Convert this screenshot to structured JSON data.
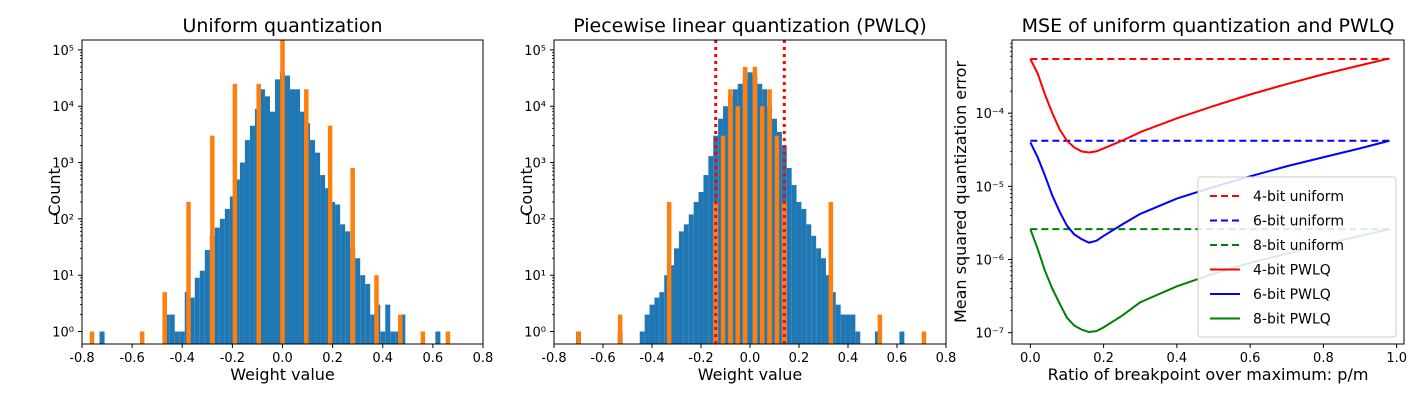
{
  "chart_data": [
    {
      "type": "bar",
      "title": "Uniform quantization",
      "xlabel": "Weight value",
      "ylabel": "Count",
      "yscale": "log",
      "xlim": [
        -0.8,
        0.8
      ],
      "ylim": [
        0.6,
        150000
      ],
      "xticks": [
        "-0.8",
        "-0.6",
        "-0.4",
        "-0.2",
        "0.0",
        "0.2",
        "0.4",
        "0.6",
        "0.8"
      ],
      "yticks": [
        1,
        10,
        100,
        1000,
        10000,
        100000
      ],
      "series": [
        {
          "color": "#1f77b4",
          "x": [
            -0.72,
            -0.46,
            -0.44,
            -0.42,
            -0.4,
            -0.38,
            -0.36,
            -0.34,
            -0.32,
            -0.3,
            -0.28,
            -0.26,
            -0.24,
            -0.22,
            -0.2,
            -0.18,
            -0.16,
            -0.14,
            -0.12,
            -0.1,
            -0.08,
            -0.06,
            -0.04,
            -0.02,
            0.0,
            0.02,
            0.04,
            0.06,
            0.08,
            0.1,
            0.12,
            0.14,
            0.16,
            0.18,
            0.2,
            0.22,
            0.24,
            0.26,
            0.28,
            0.3,
            0.32,
            0.34,
            0.36,
            0.38,
            0.4,
            0.42,
            0.44,
            0.46,
            0.48,
            0.62
          ],
          "values": [
            1,
            2,
            2,
            1,
            1,
            5,
            4,
            9,
            12,
            28,
            50,
            70,
            100,
            150,
            250,
            500,
            1000,
            2500,
            4500,
            9000,
            20000,
            15000,
            8000,
            30000,
            40000,
            35000,
            20000,
            20000,
            8000,
            5000,
            2500,
            1500,
            600,
            350,
            200,
            180,
            80,
            60,
            30,
            20,
            10,
            7,
            2,
            3,
            1,
            3,
            1,
            1,
            2,
            1
          ]
        },
        {
          "color": "#ff7f0e",
          "x": [
            -0.76,
            -0.56,
            -0.47,
            -0.375,
            -0.28,
            -0.19,
            -0.095,
            0.0,
            0.095,
            0.19,
            0.28,
            0.375,
            0.47,
            0.56,
            0.66
          ],
          "values": [
            1,
            1,
            5,
            200,
            3000,
            25000,
            25000,
            180000,
            20000,
            4500,
            800,
            10,
            2,
            1,
            1
          ]
        }
      ]
    },
    {
      "type": "bar",
      "title": "Piecewise linear quantization (PWLQ)",
      "xlabel": "Weight value",
      "ylabel": "Count",
      "yscale": "log",
      "xlim": [
        -0.8,
        0.8
      ],
      "ylim": [
        0.6,
        150000
      ],
      "xticks": [
        "-0.8",
        "-0.6",
        "-0.4",
        "-0.2",
        "0.0",
        "0.2",
        "0.4",
        "0.6",
        "0.8"
      ],
      "yticks": [
        1,
        10,
        100,
        1000,
        10000,
        100000
      ],
      "breakpoints": [
        -0.14,
        0.14
      ],
      "breakpoint_color": "#ff0000",
      "series": [
        {
          "color": "#1f77b4",
          "x": [
            -0.7,
            -0.53,
            -0.44,
            -0.42,
            -0.4,
            -0.38,
            -0.36,
            -0.34,
            -0.32,
            -0.3,
            -0.28,
            -0.26,
            -0.24,
            -0.22,
            -0.2,
            -0.18,
            -0.16,
            -0.14,
            -0.12,
            -0.1,
            -0.08,
            -0.06,
            -0.04,
            -0.02,
            0.0,
            0.02,
            0.04,
            0.06,
            0.08,
            0.1,
            0.12,
            0.14,
            0.16,
            0.18,
            0.2,
            0.22,
            0.24,
            0.26,
            0.28,
            0.3,
            0.32,
            0.34,
            0.36,
            0.38,
            0.4,
            0.42,
            0.44,
            0.52,
            0.62
          ],
          "values": [
            1,
            1,
            1,
            2,
            3,
            4,
            5,
            10,
            15,
            30,
            60,
            80,
            120,
            200,
            300,
            600,
            1300,
            3000,
            6000,
            10000,
            15000,
            20000,
            25000,
            30000,
            40000,
            35000,
            25000,
            20000,
            10000,
            6000,
            3500,
            2000,
            800,
            400,
            200,
            150,
            80,
            50,
            30,
            20,
            10,
            5,
            3,
            2,
            2,
            2,
            1,
            1,
            1
          ]
        },
        {
          "color": "#ff7f0e",
          "x": [
            -0.7,
            -0.53,
            -0.33,
            -0.14,
            -0.11,
            -0.08,
            -0.05,
            -0.02,
            0.02,
            0.05,
            0.08,
            0.11,
            0.14,
            0.33,
            0.53,
            0.71
          ],
          "values": [
            1,
            2,
            200,
            200,
            3000,
            20000,
            10000,
            50000,
            50000,
            10000,
            20000,
            3000,
            200,
            200,
            2,
            1
          ]
        }
      ]
    },
    {
      "type": "line",
      "title": "MSE of uniform quantization and PWLQ",
      "xlabel": "Ratio of breakpoint over maximum: p/m",
      "ylabel": "Mean squared quantization error",
      "yscale": "log",
      "xlim": [
        -0.05,
        1.02
      ],
      "ylim": [
        7e-08,
        0.001
      ],
      "xticks": [
        "0.0",
        "0.2",
        "0.4",
        "0.6",
        "0.8",
        "1.0"
      ],
      "yticks": [
        1e-07,
        1e-06,
        1e-05,
        0.0001
      ],
      "legend_position": "lower-right",
      "series": [
        {
          "name": "4-bit uniform",
          "color": "#ff0000",
          "style": "dashed",
          "x": [
            0.0,
            0.98
          ],
          "y": [
            0.00055,
            0.00055
          ]
        },
        {
          "name": "6-bit uniform",
          "color": "#0000ff",
          "style": "dashed",
          "x": [
            0.0,
            0.98
          ],
          "y": [
            4.2e-05,
            4.2e-05
          ]
        },
        {
          "name": "8-bit uniform",
          "color": "#008000",
          "style": "dashed",
          "x": [
            0.0,
            0.98
          ],
          "y": [
            2.6e-06,
            2.6e-06
          ]
        },
        {
          "name": "4-bit PWLQ",
          "color": "#ff0000",
          "style": "solid",
          "x": [
            0.0,
            0.02,
            0.04,
            0.06,
            0.08,
            0.1,
            0.12,
            0.14,
            0.16,
            0.18,
            0.2,
            0.25,
            0.3,
            0.4,
            0.5,
            0.6,
            0.7,
            0.8,
            0.9,
            0.98
          ],
          "y": [
            0.00055,
            0.00035,
            0.00018,
            0.0001,
            6e-05,
            4.2e-05,
            3.4e-05,
            3e-05,
            2.9e-05,
            3e-05,
            3.3e-05,
            4.2e-05,
            5.5e-05,
            8.5e-05,
            0.000125,
            0.00018,
            0.00025,
            0.00034,
            0.00045,
            0.00056
          ]
        },
        {
          "name": "6-bit PWLQ",
          "color": "#0000ff",
          "style": "solid",
          "x": [
            0.0,
            0.02,
            0.04,
            0.06,
            0.08,
            0.1,
            0.12,
            0.14,
            0.16,
            0.18,
            0.2,
            0.25,
            0.3,
            0.4,
            0.5,
            0.6,
            0.7,
            0.8,
            0.9,
            0.98
          ],
          "y": [
            4e-05,
            2.5e-05,
            1.4e-05,
            7.5e-06,
            4.5e-06,
            2.9e-06,
            2.2e-06,
            1.9e-06,
            1.7e-06,
            1.8e-06,
            2.1e-06,
            3e-06,
            4.2e-06,
            6.8e-06,
            9.8e-06,
            1.37e-05,
            1.88e-05,
            2.5e-05,
            3.3e-05,
            4.2e-05
          ]
        },
        {
          "name": "8-bit PWLQ",
          "color": "#008000",
          "style": "solid",
          "x": [
            0.0,
            0.02,
            0.04,
            0.06,
            0.08,
            0.1,
            0.12,
            0.14,
            0.16,
            0.18,
            0.2,
            0.25,
            0.3,
            0.4,
            0.5,
            0.6,
            0.7,
            0.8,
            0.9,
            0.98
          ],
          "y": [
            2.6e-06,
            1.4e-06,
            7e-07,
            4e-07,
            2.5e-07,
            1.6e-07,
            1.25e-07,
            1.1e-07,
            1.02e-07,
            1.05e-07,
            1.18e-07,
            1.7e-07,
            2.6e-07,
            4.3e-07,
            6.4e-07,
            9e-07,
            1.2e-06,
            1.6e-06,
            2.1e-06,
            2.6e-06
          ]
        }
      ]
    }
  ]
}
